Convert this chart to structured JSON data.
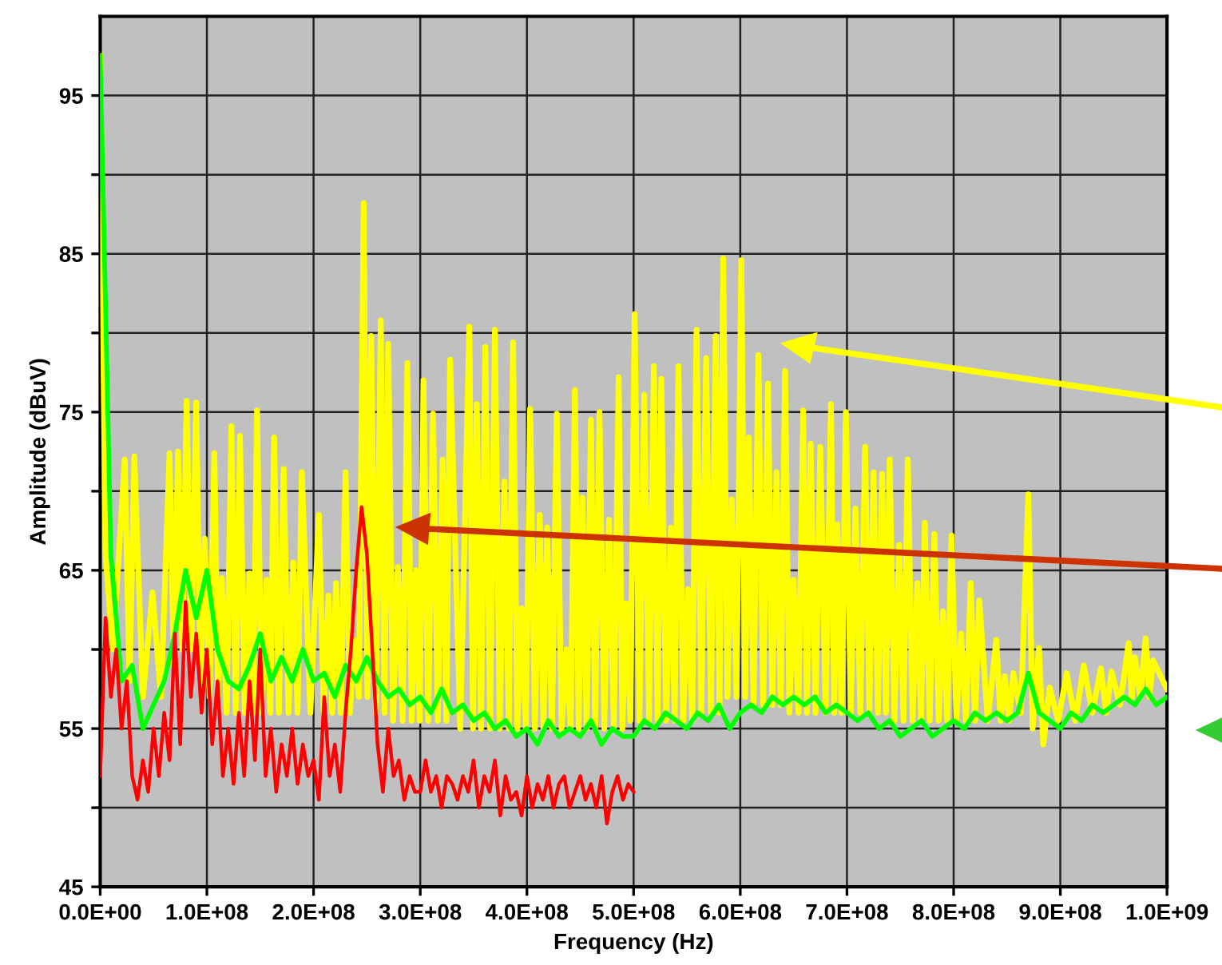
{
  "chart_data": {
    "type": "line",
    "xlabel": "Frequency (Hz)",
    "ylabel": "Amplitude (dBuV)",
    "xlim": [
      0,
      1000000000.0
    ],
    "ylim": [
      45,
      100
    ],
    "xticks": [
      {
        "value": 0,
        "label": "0.0E+00"
      },
      {
        "value": 100000000.0,
        "label": "1.0E+08"
      },
      {
        "value": 200000000.0,
        "label": "2.0E+08"
      },
      {
        "value": 300000000.0,
        "label": "3.0E+08"
      },
      {
        "value": 400000000.0,
        "label": "4.0E+08"
      },
      {
        "value": 500000000.0,
        "label": "5.0E+08"
      },
      {
        "value": 600000000.0,
        "label": "6.0E+08"
      },
      {
        "value": 700000000.0,
        "label": "7.0E+08"
      },
      {
        "value": 800000000.0,
        "label": "8.0E+08"
      },
      {
        "value": 900000000.0,
        "label": "9.0E+08"
      },
      {
        "value": 1000000000.0,
        "label": "1.0E+09"
      }
    ],
    "yticks": [
      45,
      {
        "value": 50,
        "label": null
      },
      55,
      {
        "value": 60,
        "label": null
      },
      65,
      {
        "value": 70,
        "label": null
      },
      75,
      {
        "value": 80,
        "label": null
      },
      85,
      {
        "value": 90,
        "label": null
      },
      95
    ],
    "grid": true,
    "legend": false,
    "marker": "none",
    "line_style": "solid",
    "series": [
      {
        "color": "#ffff00",
        "x": [
          0,
          5000000.0,
          12000000.0,
          23000000.0,
          27500000.0,
          32000000.0,
          40000000.0,
          49000000.0,
          57000000.0,
          65000000.0,
          69000000.0,
          73000000.0,
          77000000.0,
          81000000.0,
          85500000.0,
          90000000.0,
          94000000.0,
          98000000.0,
          102500000.0,
          107000000.0,
          110500000.0,
          114000000.0,
          118500000.0,
          123000000.0,
          127000000.0,
          131000000.0,
          135500000.0,
          140000000.0,
          143500000.0,
          147000000.0,
          151500000.0,
          156000000.0,
          159500000.0,
          163000000.0,
          167500000.0,
          172000000.0,
          176500000.0,
          181000000.0,
          185000000.0,
          189000000.0,
          197000000.0,
          205000000.0,
          209500000.0,
          214000000.0,
          217500000.0,
          221000000.0,
          225500000.0,
          230000000.0,
          234000000.0,
          238000000.0,
          242500000.0,
          247000000.0,
          250500000.0,
          254000000.0,
          258500000.0,
          263000000.0,
          266500000.0,
          270000000.0,
          274500000.0,
          279000000.0,
          283500000.0,
          288000000.0,
          292000000.0,
          296000000.0,
          299500000.0,
          303000000.0,
          307500000.0,
          312000000.0,
          316500000.0,
          321000000.0,
          324500000.0,
          328000000.0,
          337500000.0,
          346000000.0,
          349500000.0,
          353000000.0,
          357000000.0,
          361000000.0,
          365500000.0,
          370000000.0,
          374500000.0,
          379000000.0,
          383000000.0,
          387000000.0,
          391000000.0,
          395000000.0,
          399000000.0,
          403000000.0,
          407500000.0,
          412000000.0,
          415500000.0,
          419000000.0,
          423500000.0,
          428000000.0,
          432500000.0,
          437000000.0,
          441000000.0,
          445000000.0,
          448500000.0,
          452000000.0,
          456000000.0,
          460000000.0,
          464000000.0,
          468000000.0,
          472500000.0,
          477000000.0,
          481500000.0,
          486000000.0,
          489500000.0,
          493000000.0,
          497000000.0,
          501000000.0,
          505500000.0,
          510000000.0,
          514500000.0,
          519000000.0,
          522500000.0,
          526000000.0,
          530500000.0,
          535000000.0,
          538500000.0,
          542000000.0,
          546500000.0,
          551000000.0,
          555000000.0,
          559000000.0,
          563500000.0,
          568000000.0,
          572500000.0,
          577000000.0,
          580500000.0,
          584000000.0,
          588000000.0,
          592000000.0,
          596500000.0,
          601000000.0,
          604500000.0,
          608000000.0,
          612500000.0,
          617000000.0,
          621500000.0,
          626000000.0,
          630000000.0,
          634000000.0,
          638000000.0,
          642000000.0,
          646000000.0,
          650000000.0,
          654500000.0,
          659000000.0,
          662500000.0,
          666000000.0,
          670500000.0,
          675000000.0,
          680000000.0,
          685000000.0,
          688000000.0,
          691000000.0,
          695000000.0,
          699000000.0,
          703500000.0,
          708000000.0,
          712500000.0,
          717000000.0,
          721000000.0,
          725000000.0,
          729000000.0,
          733000000.0,
          736500000.0,
          740000000.0,
          744500000.0,
          749000000.0,
          753000000.0,
          757000000.0,
          761500000.0,
          766000000.0,
          769500000.0,
          773000000.0,
          777500000.0,
          782000000.0,
          786000000.0,
          790000000.0,
          794000000.0,
          798000000.0,
          802500000.0,
          807000000.0,
          811500000.0,
          816000000.0,
          820000000.0,
          824000000.0,
          832000000.0,
          840000000.0,
          844000000.0,
          848000000.0,
          852000000.0,
          856000000.0,
          863000000.0,
          870000000.0,
          874000000.0,
          880000000.0,
          884000000.0,
          890000000.0,
          898000000.0,
          906000000.0,
          914000000.0,
          922000000.0,
          930000000.0,
          938000000.0,
          943000000.0,
          948000000.0,
          956000000.0,
          964000000.0,
          967000000.0,
          970000000.0,
          975000000.0,
          980000000.0,
          983500000.0,
          987000000.0,
          1000000000.0
        ],
        "values": [
          97.5,
          66,
          60,
          72.0,
          58,
          72.2,
          57,
          63.6,
          57,
          72.4,
          59,
          72.5,
          60,
          75.7,
          60,
          75.6,
          58,
          67,
          57,
          72.4,
          57,
          64.5,
          56,
          74.1,
          56,
          73.5,
          56,
          64.8,
          56,
          75.1,
          56,
          64.4,
          56,
          73.4,
          56,
          71.4,
          56,
          65.5,
          56,
          71.2,
          56,
          68.5,
          56,
          63.4,
          56,
          64.2,
          56,
          71.2,
          56,
          60.6,
          57,
          88.2,
          57,
          79.8,
          56,
          80.8,
          56,
          79.3,
          55.5,
          65.2,
          55.5,
          78.1,
          55.5,
          65,
          55.5,
          77,
          55.5,
          74.9,
          55.5,
          72,
          55.5,
          78.3,
          55,
          80.4,
          55,
          75.5,
          55,
          79.1,
          55,
          80.2,
          55,
          70.6,
          55,
          79.4,
          55,
          62.6,
          55,
          75.2,
          55,
          68.5,
          55,
          67.7,
          55,
          74.9,
          55,
          60,
          55,
          76.4,
          55,
          69.6,
          55,
          74.5,
          55,
          75,
          55,
          68.2,
          55,
          77.2,
          55,
          62.9,
          55.5,
          81.2,
          55.5,
          76.1,
          55.5,
          77.9,
          55.5,
          77.1,
          55.5,
          67.7,
          55.5,
          77.9,
          55.5,
          63.8,
          55.5,
          80.2,
          56,
          78.4,
          56,
          79.8,
          56,
          84.7,
          57,
          69.5,
          57,
          84.6,
          57,
          73.4,
          56.5,
          78.6,
          56.5,
          76.8,
          56.5,
          71.2,
          56.5,
          77.6,
          56,
          64.4,
          56,
          75.1,
          56,
          73,
          56,
          72.8,
          56,
          75.5,
          56,
          67.9,
          56,
          75,
          56,
          68.9,
          56,
          72.8,
          56,
          71.2,
          56,
          71.1,
          56,
          72,
          55.5,
          66.6,
          55.5,
          72,
          55.5,
          64.2,
          55.5,
          68,
          55.5,
          67.3,
          55.5,
          62.4,
          55.5,
          67.2,
          55.5,
          61,
          55.5,
          64.2,
          55.5,
          63.1,
          55.5,
          60.6,
          55.5,
          58.3,
          55.5,
          58.5,
          56,
          69.8,
          55,
          60.1,
          54,
          57.6,
          55.5,
          58.5,
          55.5,
          59,
          56,
          58.8,
          56,
          58.6,
          56.5,
          60.4,
          57,
          59.5,
          57,
          60.7,
          57,
          59.3,
          57.5
        ]
      },
      {
        "color": "#00ff00",
        "x": [
          0,
          10000000.0,
          20000000.0,
          30000000.0,
          40000000.0,
          50000000.0,
          60000000.0,
          70000000.0,
          80000000.0,
          90000000.0,
          100000000.0,
          110000000.0,
          120000000.0,
          130000000.0,
          140000000.0,
          150000000.0,
          160000000.0,
          170000000.0,
          180000000.0,
          190000000.0,
          200000000.0,
          210000000.0,
          220000000.0,
          230000000.0,
          240000000.0,
          250000000.0,
          260000000.0,
          270000000.0,
          280000000.0,
          290000000.0,
          300000000.0,
          310000000.0,
          320000000.0,
          330000000.0,
          340000000.0,
          350000000.0,
          360000000.0,
          370000000.0,
          380000000.0,
          390000000.0,
          400000000.0,
          410000000.0,
          420000000.0,
          430000000.0,
          440000000.0,
          450000000.0,
          460000000.0,
          470000000.0,
          480000000.0,
          490000000.0,
          500000000.0,
          510000000.0,
          520000000.0,
          530000000.0,
          540000000.0,
          550000000.0,
          560000000.0,
          570000000.0,
          580000000.0,
          590000000.0,
          600000000.0,
          610000000.0,
          620000000.0,
          630000000.0,
          640000000.0,
          650000000.0,
          660000000.0,
          670000000.0,
          680000000.0,
          690000000.0,
          700000000.0,
          710000000.0,
          720000000.0,
          730000000.0,
          740000000.0,
          750000000.0,
          760000000.0,
          770000000.0,
          780000000.0,
          790000000.0,
          800000000.0,
          810000000.0,
          820000000.0,
          830000000.0,
          840000000.0,
          850000000.0,
          860000000.0,
          870000000.0,
          880000000.0,
          890000000.0,
          900000000.0,
          910000000.0,
          920000000.0,
          930000000.0,
          940000000.0,
          950000000.0,
          960000000.0,
          970000000.0,
          980000000.0,
          990000000.0,
          1000000000.0
        ],
        "values": [
          97.5,
          66,
          58,
          59,
          55,
          56.5,
          58,
          61,
          65,
          62,
          65,
          60,
          58,
          57.5,
          59,
          61,
          58,
          59.5,
          58,
          60,
          58,
          58.5,
          57,
          59,
          58,
          59.5,
          58,
          57,
          57.5,
          56.5,
          57,
          56,
          57.5,
          56,
          56.5,
          55.5,
          56,
          55,
          55.5,
          54.5,
          55,
          54,
          55.5,
          54.5,
          55,
          54.5,
          55.5,
          54,
          55,
          54.5,
          54.5,
          55.5,
          55,
          56,
          55.5,
          55,
          56,
          55.5,
          56.5,
          55,
          56,
          56.5,
          56,
          57,
          56.5,
          57,
          56.5,
          57,
          56,
          56.5,
          56,
          55.5,
          56,
          55,
          55.5,
          54.5,
          55,
          55.5,
          54.5,
          55,
          55.5,
          55,
          56,
          55.5,
          56,
          55.5,
          56,
          58.5,
          56,
          55.5,
          55,
          56,
          55.5,
          56.5,
          56,
          56.5,
          57,
          56.5,
          57.5,
          56.5,
          57
        ]
      },
      {
        "color": "#ff0000",
        "x": [
          0,
          5000000.0,
          10000000.0,
          15000000.0,
          20000000.0,
          25000000.0,
          30000000.0,
          35000000.0,
          40000000.0,
          45000000.0,
          50000000.0,
          55000000.0,
          60000000.0,
          65000000.0,
          70000000.0,
          75000000.0,
          80000000.0,
          85000000.0,
          90000000.0,
          95000000.0,
          100000000.0,
          105000000.0,
          110000000.0,
          115000000.0,
          120000000.0,
          125000000.0,
          130000000.0,
          135000000.0,
          140000000.0,
          145000000.0,
          150000000.0,
          155000000.0,
          160000000.0,
          165000000.0,
          170000000.0,
          175000000.0,
          180000000.0,
          185000000.0,
          190000000.0,
          195000000.0,
          200000000.0,
          205000000.0,
          210000000.0,
          215000000.0,
          220000000.0,
          225000000.0,
          230000000.0,
          235000000.0,
          240000000.0,
          245000000.0,
          250000000.0,
          255000000.0,
          260000000.0,
          265000000.0,
          270000000.0,
          275000000.0,
          280000000.0,
          285000000.0,
          290000000.0,
          295000000.0,
          300000000.0,
          305000000.0,
          310000000.0,
          315000000.0,
          320000000.0,
          325000000.0,
          330000000.0,
          335000000.0,
          340000000.0,
          345000000.0,
          350000000.0,
          355000000.0,
          360000000.0,
          365000000.0,
          370000000.0,
          375000000.0,
          380000000.0,
          385000000.0,
          390000000.0,
          395000000.0,
          400000000.0,
          405000000.0,
          410000000.0,
          415000000.0,
          420000000.0,
          425000000.0,
          430000000.0,
          435000000.0,
          440000000.0,
          445000000.0,
          450000000.0,
          455000000.0,
          460000000.0,
          465000000.0,
          470000000.0,
          475000000.0,
          480000000.0,
          485000000.0,
          490000000.0,
          495000000.0,
          500000000.0
        ],
        "values": [
          52,
          62,
          57,
          60,
          55,
          58,
          52,
          50.5,
          53,
          51,
          55,
          52,
          56,
          53,
          61,
          54,
          63,
          57,
          61,
          56,
          60,
          54,
          58,
          52,
          55,
          51.5,
          56,
          52,
          58,
          53,
          60,
          52,
          55,
          51,
          54,
          52,
          55,
          51.5,
          54,
          52,
          53,
          50.5,
          57,
          52,
          54,
          51,
          56,
          60,
          65,
          69,
          66,
          60,
          54,
          51,
          55,
          52,
          53,
          50.5,
          52,
          51,
          51,
          53,
          51,
          52,
          50,
          52,
          51.5,
          50.5,
          52,
          51,
          53,
          50,
          52,
          51,
          53,
          49.5,
          52,
          50.5,
          51,
          49.5,
          52,
          50,
          51.5,
          50.5,
          52,
          50,
          51.5,
          52,
          50,
          51,
          52,
          50.5,
          51.5,
          50,
          52,
          49,
          51,
          52,
          50.5,
          51.5,
          51
        ]
      }
    ]
  }
}
